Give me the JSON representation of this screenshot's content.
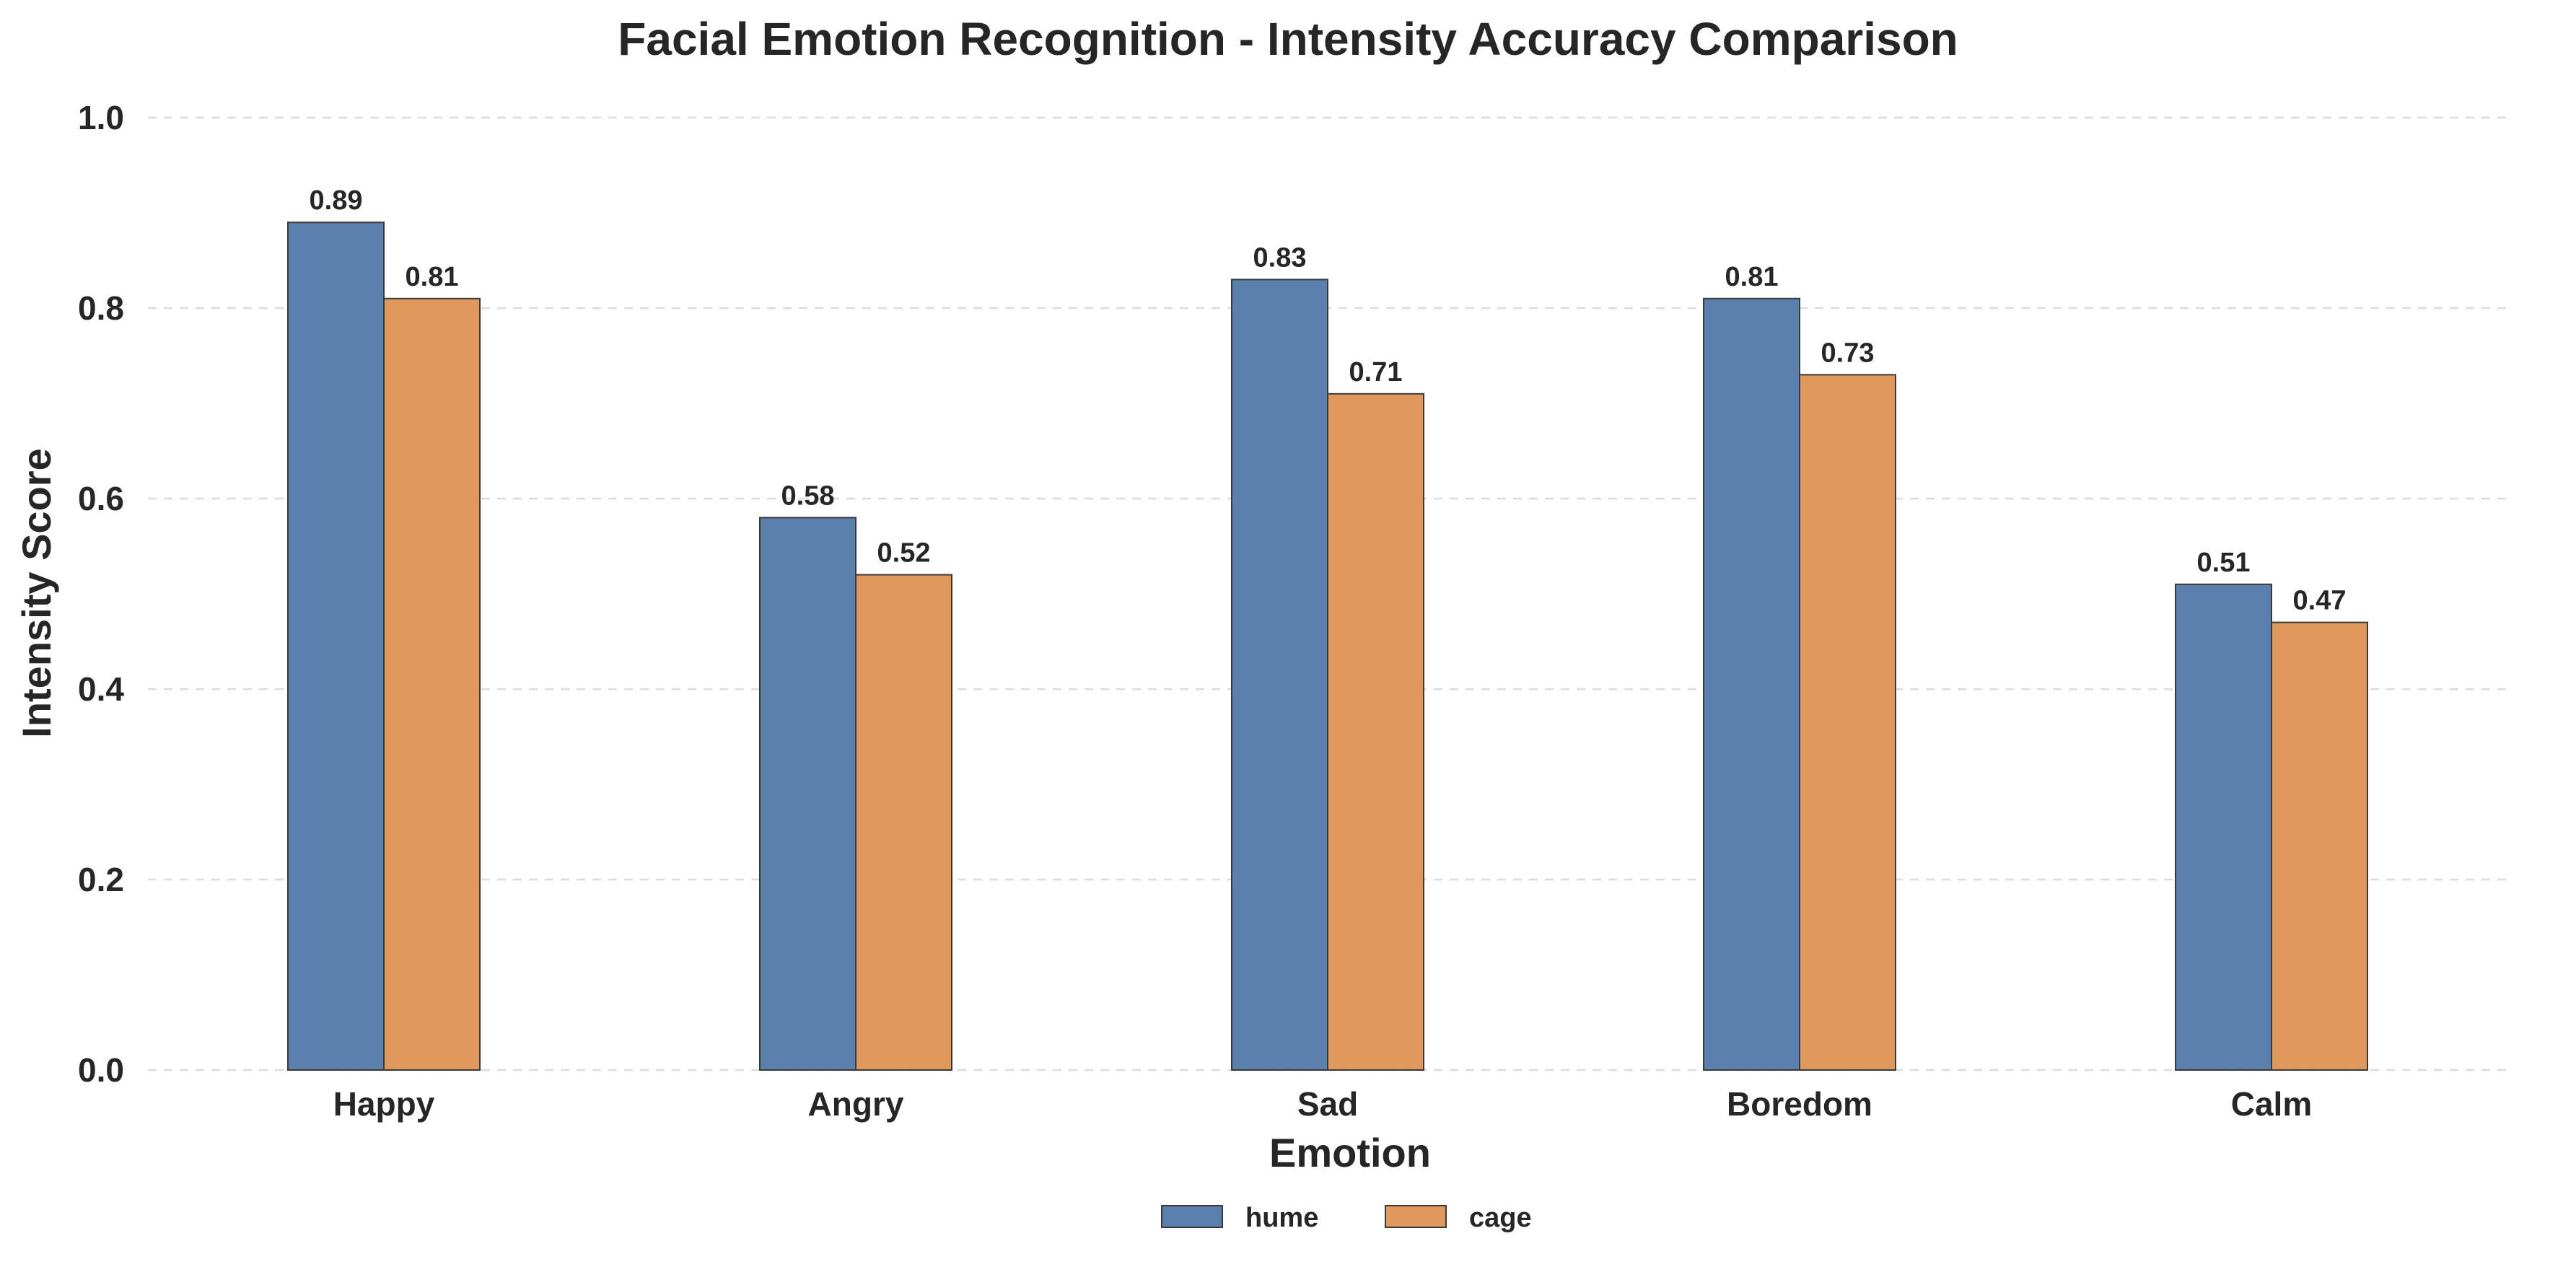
{
  "chart_data": {
    "type": "bar",
    "title": "Facial Emotion Recognition - Intensity Accuracy Comparison",
    "xlabel": "Emotion",
    "ylabel": "Intensity Score",
    "ylim": [
      0,
      1.0
    ],
    "yticks": [
      0.0,
      0.2,
      0.4,
      0.6,
      0.8,
      1.0
    ],
    "ytick_labels": [
      "0.0",
      "0.2",
      "0.4",
      "0.6",
      "0.8",
      "1.0"
    ],
    "grid": true,
    "legend_position": "bottom-center",
    "categories": [
      "Happy",
      "Angry",
      "Sad",
      "Boredom",
      "Calm"
    ],
    "series": [
      {
        "name": "hume",
        "color": "#5b80ad",
        "values": [
          0.89,
          0.58,
          0.83,
          0.81,
          0.51
        ],
        "labels": [
          "0.89",
          "0.58",
          "0.83",
          "0.81",
          "0.51"
        ]
      },
      {
        "name": "cage",
        "color": "#e0985c",
        "values": [
          0.81,
          0.52,
          0.71,
          0.73,
          0.47
        ],
        "labels": [
          "0.81",
          "0.52",
          "0.71",
          "0.73",
          "0.47"
        ]
      }
    ]
  }
}
